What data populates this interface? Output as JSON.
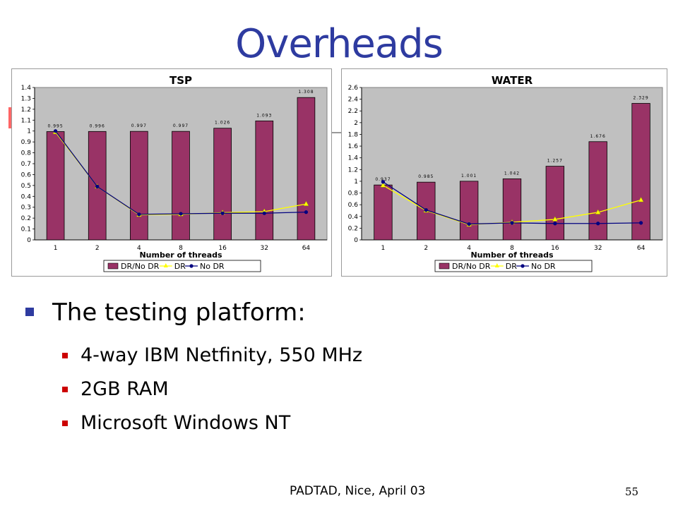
{
  "slide": {
    "title": "Overheads",
    "bullet_main": "The testing platform:",
    "sub_bullets": [
      "4-way IBM Netfinity, 550 MHz",
      "2GB RAM",
      "Microsoft Windows NT"
    ],
    "footer": "PADTAD, Nice, April 03",
    "page_number": "55"
  },
  "colors": {
    "title": "#2e3ba0",
    "bar": "#993366",
    "dr_line": "#ffff00",
    "nodr_line": "#000080",
    "plot_bg": "#c0c0c0",
    "bullet_main": "#2e3ba0",
    "bullet_sub": "#cc0000"
  },
  "chart_data": [
    {
      "type": "bar",
      "title": "TSP",
      "xlabel": "Number of threads",
      "ylabel": "",
      "categories": [
        "1",
        "2",
        "4",
        "8",
        "16",
        "32",
        "64"
      ],
      "ylim": [
        0,
        1.4
      ],
      "yticks": [
        0,
        0.1,
        0.2,
        0.3,
        0.4,
        0.5,
        0.6,
        0.7,
        0.8,
        0.9,
        1,
        1.1,
        1.2,
        1.3,
        1.4
      ],
      "data_labels": [
        "0.995",
        "0.996",
        "0.997",
        "0.997",
        "1.026",
        "1.093",
        "1.308"
      ],
      "series": [
        {
          "name": "DR/No DR",
          "kind": "bar",
          "values": [
            0.995,
            0.996,
            0.997,
            0.997,
            1.026,
            1.093,
            1.308
          ]
        },
        {
          "name": "DR",
          "kind": "line",
          "marker": "triangle",
          "values": [
            0.99,
            0.49,
            0.23,
            0.235,
            0.25,
            0.26,
            0.33
          ]
        },
        {
          "name": "No DR",
          "kind": "line",
          "marker": "circle",
          "values": [
            1.0,
            0.49,
            0.235,
            0.24,
            0.245,
            0.245,
            0.255
          ]
        }
      ],
      "legend_position": "bottom"
    },
    {
      "type": "bar",
      "title": "WATER",
      "xlabel": "Number of threads",
      "ylabel": "",
      "categories": [
        "1",
        "2",
        "4",
        "8",
        "16",
        "32",
        "64"
      ],
      "ylim": [
        0,
        2.6
      ],
      "yticks": [
        0,
        0.2,
        0.4,
        0.6,
        0.8,
        1,
        1.2,
        1.4,
        1.6,
        1.8,
        2,
        2.2,
        2.4,
        2.6
      ],
      "data_labels": [
        "0.937",
        "0.985",
        "1.001",
        "1.042",
        "1.257",
        "1.676",
        "2.329"
      ],
      "series": [
        {
          "name": "DR/No DR",
          "kind": "bar",
          "values": [
            0.937,
            0.985,
            1.001,
            1.042,
            1.257,
            1.676,
            2.329
          ]
        },
        {
          "name": "DR",
          "kind": "line",
          "marker": "triangle",
          "values": [
            0.93,
            0.5,
            0.26,
            0.3,
            0.35,
            0.47,
            0.68
          ]
        },
        {
          "name": "No DR",
          "kind": "line",
          "marker": "circle",
          "values": [
            0.99,
            0.51,
            0.27,
            0.29,
            0.28,
            0.28,
            0.29
          ]
        }
      ],
      "legend_position": "bottom"
    }
  ]
}
